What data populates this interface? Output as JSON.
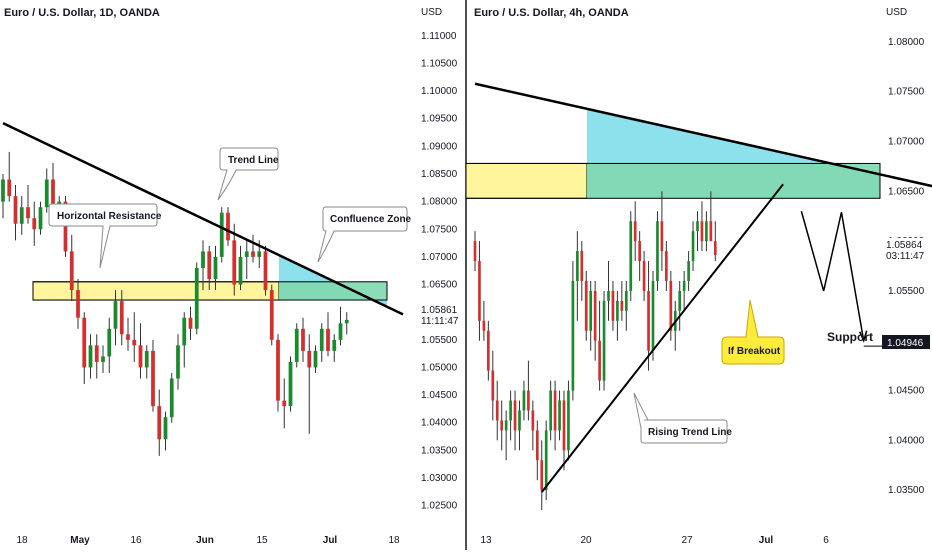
{
  "chart_data": [
    {
      "type": "candlestick",
      "title": "Euro / U.S. Dollar, 1D, OANDA",
      "unit_label": "USD",
      "y_ticks": [
        "1.11000",
        "1.10500",
        "1.10000",
        "1.09500",
        "1.09000",
        "1.08500",
        "1.08000",
        "1.07500",
        "1.07000",
        "1.06500",
        "1.06000",
        "1.05500",
        "1.05000",
        "1.04500",
        "1.04000",
        "1.03500",
        "1.03000",
        "1.02500"
      ],
      "ylim": [
        1.0215,
        1.1125
      ],
      "x_ticks": [
        {
          "label": "18",
          "bold": false
        },
        {
          "label": "May",
          "bold": true
        },
        {
          "label": "16",
          "bold": false
        },
        {
          "label": "Jun",
          "bold": true
        },
        {
          "label": "15",
          "bold": false
        },
        {
          "label": "Jul",
          "bold": true
        },
        {
          "label": "18",
          "bold": false
        }
      ],
      "price_label": {
        "price": "1.05861",
        "countdown": "11:11:47",
        "value": 1.05861
      },
      "ohlc": [
        [
          1.08,
          1.085,
          1.077,
          1.084
        ],
        [
          1.084,
          1.089,
          1.08,
          1.081
        ],
        [
          1.081,
          1.083,
          1.073,
          1.076
        ],
        [
          1.076,
          1.081,
          1.074,
          1.079
        ],
        [
          1.079,
          1.083,
          1.076,
          1.077
        ],
        [
          1.077,
          1.08,
          1.072,
          1.075
        ],
        [
          1.075,
          1.08,
          1.074,
          1.079
        ],
        [
          1.079,
          1.086,
          1.078,
          1.084
        ],
        [
          1.084,
          1.087,
          1.077,
          1.079
        ],
        [
          1.079,
          1.081,
          1.076,
          1.08
        ],
        [
          1.08,
          1.081,
          1.07,
          1.071
        ],
        [
          1.071,
          1.074,
          1.062,
          1.064
        ],
        [
          1.064,
          1.066,
          1.057,
          1.059
        ],
        [
          1.059,
          1.06,
          1.047,
          1.05
        ],
        [
          1.05,
          1.056,
          1.048,
          1.054
        ],
        [
          1.054,
          1.056,
          1.048,
          1.051
        ],
        [
          1.051,
          1.054,
          1.049,
          1.052
        ],
        [
          1.052,
          1.059,
          1.049,
          1.057
        ],
        [
          1.057,
          1.064,
          1.054,
          1.062
        ],
        [
          1.062,
          1.064,
          1.054,
          1.056
        ],
        [
          1.056,
          1.059,
          1.053,
          1.055
        ],
        [
          1.055,
          1.06,
          1.051,
          1.054
        ],
        [
          1.054,
          1.058,
          1.048,
          1.05
        ],
        [
          1.05,
          1.054,
          1.048,
          1.053
        ],
        [
          1.053,
          1.055,
          1.042,
          1.043
        ],
        [
          1.043,
          1.046,
          1.034,
          1.037
        ],
        [
          1.037,
          1.042,
          1.035,
          1.041
        ],
        [
          1.041,
          1.049,
          1.04,
          1.048
        ],
        [
          1.048,
          1.056,
          1.046,
          1.054
        ],
        [
          1.054,
          1.06,
          1.05,
          1.059
        ],
        [
          1.059,
          1.061,
          1.055,
          1.057
        ],
        [
          1.057,
          1.069,
          1.056,
          1.068
        ],
        [
          1.068,
          1.073,
          1.064,
          1.071
        ],
        [
          1.071,
          1.072,
          1.064,
          1.066
        ],
        [
          1.066,
          1.072,
          1.064,
          1.07
        ],
        [
          1.07,
          1.079,
          1.069,
          1.078
        ],
        [
          1.078,
          1.079,
          1.072,
          1.073
        ],
        [
          1.073,
          1.076,
          1.063,
          1.065
        ],
        [
          1.065,
          1.072,
          1.064,
          1.07
        ],
        [
          1.07,
          1.073,
          1.066,
          1.071
        ],
        [
          1.071,
          1.074,
          1.069,
          1.07
        ],
        [
          1.07,
          1.073,
          1.068,
          1.071
        ],
        [
          1.071,
          1.072,
          1.063,
          1.064
        ],
        [
          1.064,
          1.065,
          1.054,
          1.055
        ],
        [
          1.055,
          1.056,
          1.042,
          1.044
        ],
        [
          1.044,
          1.048,
          1.039,
          1.043
        ],
        [
          1.043,
          1.052,
          1.042,
          1.051
        ],
        [
          1.051,
          1.058,
          1.05,
          1.057
        ],
        [
          1.057,
          1.059,
          1.051,
          1.053
        ],
        [
          1.053,
          1.056,
          1.038,
          1.05
        ],
        [
          1.05,
          1.054,
          1.049,
          1.053
        ],
        [
          1.053,
          1.058,
          1.051,
          1.057
        ],
        [
          1.057,
          1.06,
          1.052,
          1.053
        ],
        [
          1.053,
          1.056,
          1.051,
          1.055
        ],
        [
          1.055,
          1.061,
          1.054,
          1.058
        ],
        [
          1.058,
          1.06,
          1.056,
          1.0586
        ]
      ],
      "zones": [
        {
          "name": "resistance",
          "from": 1.0622,
          "to": 1.0655,
          "color": "#fff59d"
        },
        {
          "name": "confluence",
          "from": 1.0622,
          "to": 1.067,
          "color": "#80deea"
        }
      ],
      "trend_line": [
        [
          0,
          1.0942
        ],
        [
          64,
          1.0596
        ]
      ],
      "annotations": [
        {
          "name": "horizontal-resistance",
          "text": "Horizontal Resistance"
        },
        {
          "name": "trend-line",
          "text": "Trend Line"
        },
        {
          "name": "confluence-zone",
          "text": "Confluence Zone"
        }
      ]
    },
    {
      "type": "candlestick",
      "title": "Euro / U.S. Dollar, 4h, OANDA",
      "unit_label": "USD",
      "y_ticks": [
        "1.08000",
        "1.07500",
        "1.07000",
        "1.06500",
        "1.06000",
        "1.05500",
        "1.05000",
        "1.04500",
        "1.04000",
        "1.03500"
      ],
      "ylim": [
        1.0315,
        1.082
      ],
      "x_ticks": [
        {
          "label": "13",
          "bold": false
        },
        {
          "label": "20",
          "bold": false
        },
        {
          "label": "27",
          "bold": false
        },
        {
          "label": "Jul",
          "bold": true
        },
        {
          "label": "6",
          "bold": false
        }
      ],
      "price_label": {
        "price": "1.05864",
        "countdown": "03:11:47",
        "value": 1.05864
      },
      "support_label": {
        "price": "1.04946",
        "value": 1.04946
      },
      "ohlc": [
        [
          1.06,
          1.061,
          1.057,
          1.058
        ],
        [
          1.058,
          1.06,
          1.05,
          1.052
        ],
        [
          1.052,
          1.054,
          1.05,
          1.051
        ],
        [
          1.051,
          1.052,
          1.046,
          1.047
        ],
        [
          1.047,
          1.049,
          1.042,
          1.044
        ],
        [
          1.044,
          1.046,
          1.04,
          1.042
        ],
        [
          1.042,
          1.044,
          1.039,
          1.041
        ],
        [
          1.041,
          1.043,
          1.038,
          1.042
        ],
        [
          1.042,
          1.045,
          1.04,
          1.044
        ],
        [
          1.044,
          1.045,
          1.039,
          1.041
        ],
        [
          1.041,
          1.044,
          1.039,
          1.043
        ],
        [
          1.043,
          1.046,
          1.042,
          1.045
        ],
        [
          1.045,
          1.048,
          1.042,
          1.043
        ],
        [
          1.043,
          1.044,
          1.039,
          1.041
        ],
        [
          1.041,
          1.042,
          1.036,
          1.038
        ],
        [
          1.038,
          1.04,
          1.033,
          1.035
        ],
        [
          1.035,
          1.042,
          1.034,
          1.041
        ],
        [
          1.041,
          1.046,
          1.04,
          1.045
        ],
        [
          1.045,
          1.046,
          1.039,
          1.041
        ],
        [
          1.041,
          1.045,
          1.04,
          1.044
        ],
        [
          1.044,
          1.045,
          1.037,
          1.039
        ],
        [
          1.039,
          1.046,
          1.038,
          1.045
        ],
        [
          1.045,
          1.058,
          1.044,
          1.056
        ],
        [
          1.056,
          1.061,
          1.052,
          1.059
        ],
        [
          1.059,
          1.06,
          1.054,
          1.056
        ],
        [
          1.056,
          1.057,
          1.05,
          1.051
        ],
        [
          1.051,
          1.056,
          1.049,
          1.055
        ],
        [
          1.055,
          1.056,
          1.048,
          1.05
        ],
        [
          1.05,
          1.054,
          1.045,
          1.046
        ],
        [
          1.046,
          1.055,
          1.045,
          1.054
        ],
        [
          1.054,
          1.058,
          1.052,
          1.055
        ],
        [
          1.055,
          1.056,
          1.051,
          1.052
        ],
        [
          1.052,
          1.055,
          1.05,
          1.054
        ],
        [
          1.054,
          1.056,
          1.052,
          1.053
        ],
        [
          1.053,
          1.056,
          1.051,
          1.055
        ],
        [
          1.055,
          1.063,
          1.054,
          1.062
        ],
        [
          1.062,
          1.064,
          1.058,
          1.06
        ],
        [
          1.06,
          1.061,
          1.056,
          1.058
        ],
        [
          1.058,
          1.059,
          1.054,
          1.055
        ],
        [
          1.055,
          1.058,
          1.047,
          1.049
        ],
        [
          1.049,
          1.057,
          1.048,
          1.056
        ],
        [
          1.056,
          1.063,
          1.055,
          1.062
        ],
        [
          1.062,
          1.065,
          1.057,
          1.059
        ],
        [
          1.059,
          1.06,
          1.055,
          1.056
        ],
        [
          1.056,
          1.057,
          1.05,
          1.051
        ],
        [
          1.051,
          1.054,
          1.049,
          1.053
        ],
        [
          1.053,
          1.056,
          1.051,
          1.055
        ],
        [
          1.055,
          1.057,
          1.053,
          1.056
        ],
        [
          1.056,
          1.059,
          1.055,
          1.058
        ],
        [
          1.058,
          1.062,
          1.057,
          1.061
        ],
        [
          1.061,
          1.063,
          1.059,
          1.062
        ],
        [
          1.062,
          1.064,
          1.059,
          1.06
        ],
        [
          1.06,
          1.063,
          1.059,
          1.062
        ],
        [
          1.062,
          1.065,
          1.06,
          1.06
        ],
        [
          1.06,
          1.062,
          1.058,
          1.0586
        ]
      ],
      "zones": [
        {
          "name": "resistance",
          "from": 1.0643,
          "to": 1.0678,
          "color": "#fff59d"
        },
        {
          "name": "confluence",
          "from": 1.0643,
          "to": 1.0722,
          "color": "#80deea"
        }
      ],
      "trend_line": [
        [
          0,
          1.0758
        ],
        [
          108,
          1.065
        ]
      ],
      "rising_line": [
        [
          15,
          1.0348
        ],
        [
          58,
          1.0637
        ]
      ],
      "projection": [
        [
          52,
          1.063
        ],
        [
          57,
          1.055
        ],
        [
          61,
          1.0629
        ],
        [
          66,
          1.05
        ]
      ],
      "annotations": [
        {
          "name": "rising-trend-line",
          "text": "Rising Trend Line"
        },
        {
          "name": "if-breakout",
          "text": "If Breakout"
        },
        {
          "name": "support",
          "text": "Support"
        }
      ]
    }
  ]
}
